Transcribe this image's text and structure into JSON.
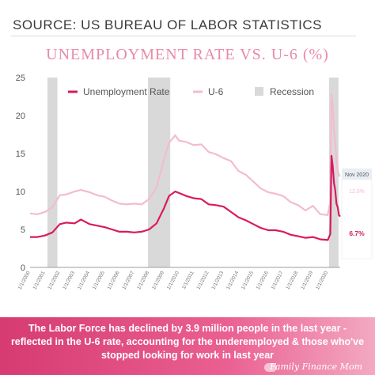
{
  "source_label": "SOURCE: US BUREAU OF LABOR STATISTICS",
  "footer_text": "The Labor Force has declined by 3.9 million people in the last year - reflected in the U-6 rate, accounting for the underemployed & those who've stopped looking for work in last year",
  "brand": "Family Finance Mom",
  "colors": {
    "unemployment": "#d81b60",
    "u6": "#f3bccd",
    "recession": "#d9d9d9",
    "callout_header": "#e9eef5"
  },
  "chart_data": {
    "type": "line",
    "title": "UNEMPLOYMENT RATE VS. U-6 (%)",
    "xlabel": "",
    "ylabel": "",
    "ylim": [
      0,
      25
    ],
    "yticks": [
      0,
      5,
      10,
      15,
      20,
      25
    ],
    "xlim": [
      "2000-01",
      "2020-11"
    ],
    "xtick_labels": [
      "1/1/2000",
      "1/1/2001",
      "1/1/2002",
      "1/1/2003",
      "1/1/2004",
      "1/1/2005",
      "1/1/2006",
      "1/1/2007",
      "1/1/2008",
      "1/1/2009",
      "1/1/2010",
      "1/1/2011",
      "1/1/2012",
      "1/1/2013",
      "1/1/2014",
      "1/1/2015",
      "1/1/2016",
      "1/1/2017",
      "1/1/2018",
      "1/1/2019",
      "1/1/2020"
    ],
    "legend": [
      "Unemployment Rate",
      "U-6",
      "Recession"
    ],
    "legend_position": "top",
    "recessions": [
      [
        "2001-03",
        "2001-11"
      ],
      [
        "2007-12",
        "2009-06"
      ],
      [
        "2020-02",
        "2020-04"
      ]
    ],
    "series": [
      {
        "name": "Unemployment Rate",
        "x": [
          "2000-01",
          "2000-07",
          "2001-01",
          "2001-07",
          "2002-01",
          "2002-06",
          "2003-01",
          "2003-06",
          "2004-01",
          "2004-07",
          "2005-01",
          "2005-07",
          "2006-01",
          "2006-07",
          "2007-01",
          "2007-07",
          "2008-01",
          "2008-07",
          "2009-01",
          "2009-05",
          "2009-10",
          "2010-01",
          "2010-07",
          "2011-01",
          "2011-07",
          "2012-01",
          "2012-07",
          "2013-01",
          "2013-07",
          "2014-01",
          "2014-07",
          "2015-01",
          "2015-07",
          "2016-01",
          "2016-07",
          "2017-01",
          "2017-07",
          "2018-01",
          "2018-07",
          "2019-01",
          "2019-07",
          "2020-01",
          "2020-03",
          "2020-04",
          "2020-05",
          "2020-06",
          "2020-07",
          "2020-08",
          "2020-09",
          "2020-10",
          "2020-11"
        ],
        "values": [
          4.0,
          4.0,
          4.2,
          4.6,
          5.7,
          5.9,
          5.8,
          6.3,
          5.7,
          5.5,
          5.3,
          5.0,
          4.7,
          4.7,
          4.6,
          4.7,
          5.0,
          5.8,
          7.8,
          9.4,
          10.0,
          9.8,
          9.4,
          9.1,
          9.0,
          8.3,
          8.2,
          8.0,
          7.3,
          6.6,
          6.2,
          5.7,
          5.2,
          4.9,
          4.9,
          4.7,
          4.3,
          4.1,
          3.9,
          4.0,
          3.7,
          3.6,
          4.4,
          14.7,
          13.3,
          11.1,
          10.2,
          8.4,
          7.9,
          6.9,
          6.7
        ]
      },
      {
        "name": "U-6",
        "x": [
          "2000-01",
          "2000-07",
          "2001-01",
          "2001-07",
          "2002-01",
          "2002-06",
          "2003-01",
          "2003-06",
          "2004-01",
          "2004-07",
          "2005-01",
          "2005-07",
          "2006-01",
          "2006-07",
          "2007-01",
          "2007-07",
          "2008-01",
          "2008-07",
          "2009-01",
          "2009-05",
          "2009-10",
          "2010-01",
          "2010-07",
          "2011-01",
          "2011-07",
          "2012-01",
          "2012-07",
          "2013-01",
          "2013-07",
          "2014-01",
          "2014-07",
          "2015-01",
          "2015-07",
          "2016-01",
          "2016-07",
          "2017-01",
          "2017-07",
          "2018-01",
          "2018-07",
          "2019-01",
          "2019-07",
          "2020-01",
          "2020-03",
          "2020-04",
          "2020-05",
          "2020-06",
          "2020-07",
          "2020-08",
          "2020-09",
          "2020-10",
          "2020-11"
        ],
        "values": [
          7.1,
          7.0,
          7.3,
          7.9,
          9.5,
          9.6,
          10.0,
          10.2,
          9.9,
          9.5,
          9.3,
          8.8,
          8.4,
          8.3,
          8.4,
          8.3,
          9.0,
          10.5,
          14.2,
          16.4,
          17.4,
          16.7,
          16.5,
          16.1,
          16.2,
          15.2,
          14.9,
          14.4,
          14.0,
          12.7,
          12.2,
          11.3,
          10.4,
          9.9,
          9.7,
          9.4,
          8.6,
          8.2,
          7.5,
          8.1,
          7.0,
          6.9,
          8.7,
          22.8,
          21.2,
          18.0,
          16.5,
          14.2,
          12.8,
          12.1,
          12.0
        ]
      }
    ],
    "annotation": {
      "header": "Nov 2020",
      "u6_label": "12.0%",
      "unemployment_label": "6.7%"
    }
  }
}
